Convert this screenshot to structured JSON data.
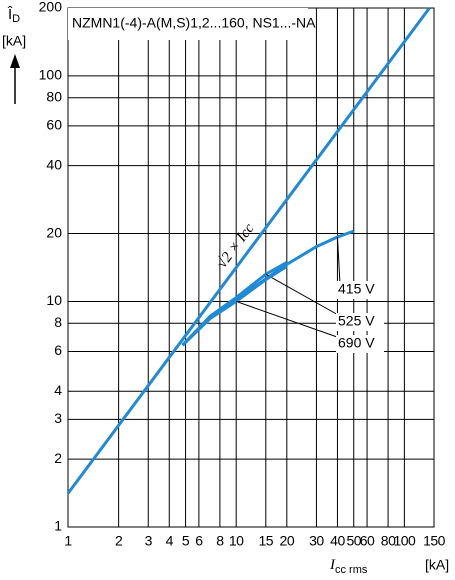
{
  "chart_data": {
    "type": "line",
    "title": "NZMN1(-4)-A(M,S)1,2...160, NS1...-NA",
    "ylabel": {
      "main": "Î",
      "sub": "D",
      "unit": "[kA]"
    },
    "xlabel": {
      "main": "I",
      "sub": "cc rms",
      "unit": "[kA]"
    },
    "log_x": true,
    "log_y": true,
    "grid": true,
    "xlim": [
      1,
      150
    ],
    "ylim": [
      1,
      200
    ],
    "xticks": [
      1,
      2,
      3,
      4,
      5,
      6,
      8,
      10,
      15,
      20,
      30,
      40,
      50,
      60,
      80,
      100,
      150
    ],
    "yticks": [
      1,
      2,
      3,
      4,
      6,
      8,
      10,
      20,
      40,
      60,
      80,
      100,
      200
    ],
    "series": [
      {
        "name": "√2 × Icc",
        "color": "#1f8ad6",
        "x": [
          1,
          141
        ],
        "values": [
          1.41,
          200
        ]
      },
      {
        "name": "415 V",
        "color": "#1f8ad6",
        "x": [
          4.8,
          7,
          10,
          15,
          20,
          30,
          40,
          50
        ],
        "values": [
          6.4,
          8.5,
          10.2,
          12.6,
          14.6,
          17.5,
          19.3,
          20.5
        ]
      },
      {
        "name": "525 V",
        "color": "#1f8ad6",
        "x": [
          4.8,
          7,
          10,
          15,
          20
        ],
        "values": [
          6.4,
          8.6,
          10.4,
          13.2,
          14.9
        ]
      },
      {
        "name": "690 V",
        "color": "#1f8ad6",
        "x": [
          4.8,
          7,
          10,
          15,
          20
        ],
        "values": [
          6.4,
          8.4,
          10.0,
          12.5,
          14.3
        ]
      }
    ]
  }
}
